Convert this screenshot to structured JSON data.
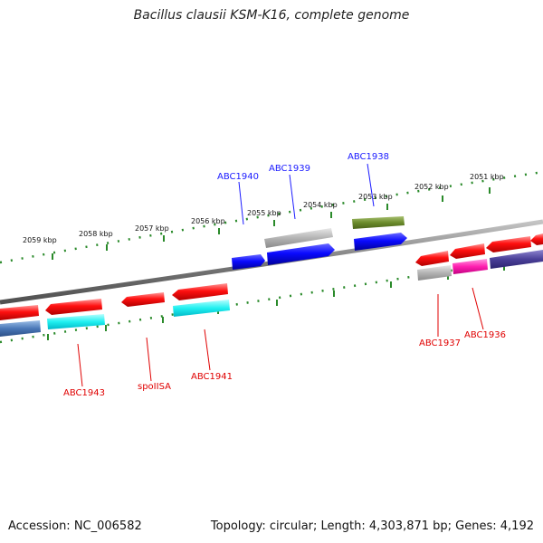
{
  "title": "Bacillus clausii KSM-K16, complete genome",
  "accession": "Accession: NC_006582",
  "topology": "Topology: circular; Length: 4,303,871 bp; Genes: 4,192",
  "tick_labels": [
    "2059 kbp",
    "2058 kbp",
    "2057 kbp",
    "2056 kbp",
    "2055 kbp",
    "2054 kbp",
    "2053 kbp",
    "2052 kbp",
    "2051 kbp"
  ],
  "gene_labels": {
    "top": [
      "ABC1940",
      "ABC1939",
      "ABC1938"
    ],
    "bottom": [
      "ABC1943",
      "spoIISA",
      "ABC1941",
      "ABC1937",
      "ABC1936"
    ]
  },
  "colors": {
    "forward_label": "#1a1aff",
    "reverse_label": "#e00000",
    "ticks": "#2a8a2a",
    "backbone": "#808080"
  }
}
